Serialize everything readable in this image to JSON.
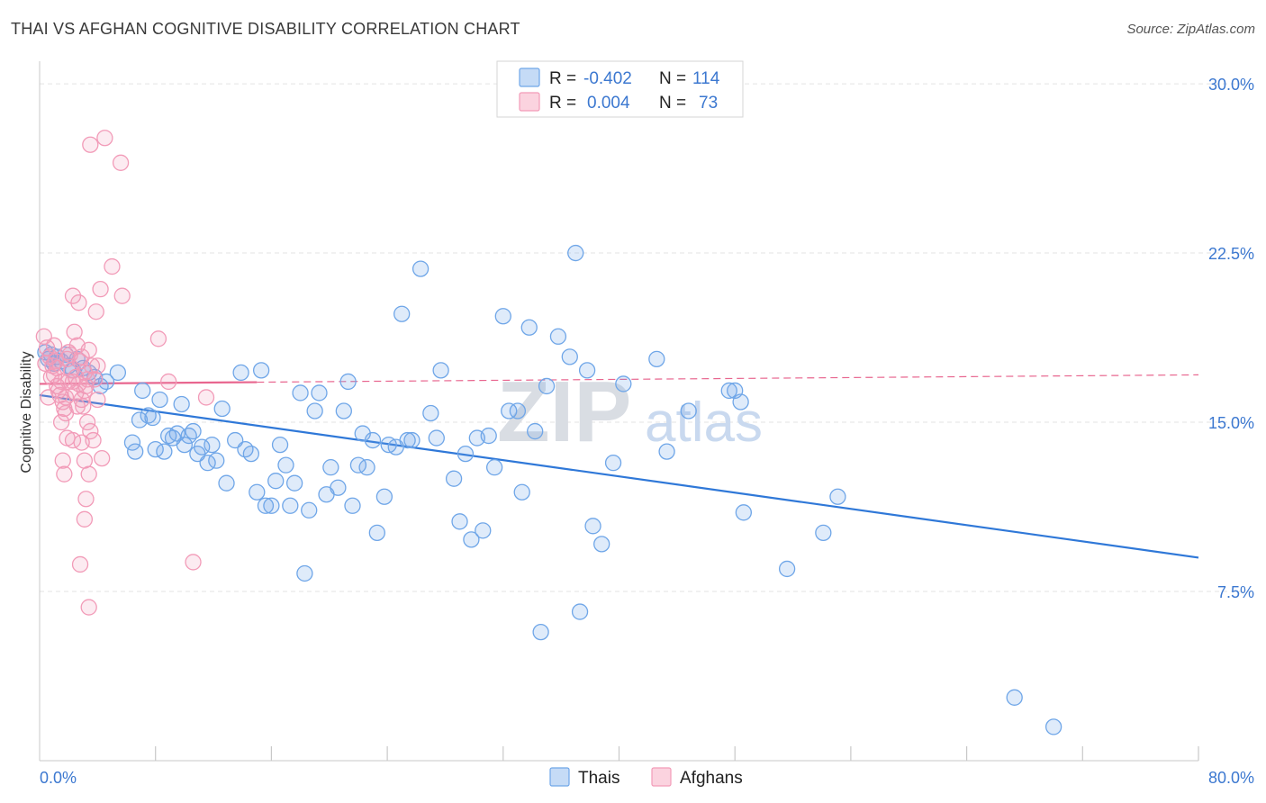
{
  "header": {
    "title": "THAI VS AFGHAN COGNITIVE DISABILITY CORRELATION CHART",
    "source": "Source: ZipAtlas.com"
  },
  "watermark": {
    "zip": "ZIP",
    "atlas": "atlas"
  },
  "colors": {
    "thais": "#6fa6e8",
    "thais_line": "#2f78d8",
    "afghans": "#f29bb8",
    "afghans_line": "#e8668f",
    "axis_text": "#3c78d0"
  },
  "chart_data": {
    "type": "scatter",
    "title": "THAI VS AFGHAN COGNITIVE DISABILITY CORRELATION CHART",
    "ylabel": "Cognitive Disability",
    "xlabel": "",
    "xlim": [
      0,
      80
    ],
    "ylim": [
      0,
      31
    ],
    "x_ticks": [
      "0.0%",
      "80.0%"
    ],
    "y_ticks": [
      {
        "value": 7.5,
        "label": "7.5%"
      },
      {
        "value": 15.0,
        "label": "15.0%"
      },
      {
        "value": 22.5,
        "label": "22.5%"
      },
      {
        "value": 30.0,
        "label": "30.0%"
      }
    ],
    "grid": true,
    "legend_position": "top-center",
    "legend": [
      {
        "r_label": "R =",
        "r_value": "-0.402",
        "n_label": "N =",
        "n_value": "114"
      },
      {
        "r_label": "R =",
        "r_value": "0.004",
        "n_label": "N =",
        "n_value": "73"
      }
    ],
    "series": [
      {
        "name": "Thais",
        "color": "#6fa6e8",
        "trend": {
          "x": [
            0,
            80
          ],
          "y": [
            16.2,
            9.0
          ],
          "style": "solid"
        },
        "points": [
          [
            0.4,
            18.1
          ],
          [
            0.6,
            17.8
          ],
          [
            0.8,
            18.0
          ],
          [
            1.0,
            17.6
          ],
          [
            1.2,
            17.9
          ],
          [
            1.5,
            17.7
          ],
          [
            1.8,
            18.0
          ],
          [
            2.0,
            17.5
          ],
          [
            2.3,
            17.3
          ],
          [
            2.6,
            17.8
          ],
          [
            3.0,
            17.4
          ],
          [
            3.4,
            17.2
          ],
          [
            3.8,
            17.0
          ],
          [
            4.2,
            16.6
          ],
          [
            4.6,
            16.8
          ],
          [
            5.4,
            17.2
          ],
          [
            6.4,
            14.1
          ],
          [
            6.6,
            13.7
          ],
          [
            6.9,
            15.1
          ],
          [
            7.1,
            16.4
          ],
          [
            7.5,
            15.3
          ],
          [
            7.8,
            15.2
          ],
          [
            8.0,
            13.8
          ],
          [
            8.3,
            16.0
          ],
          [
            8.6,
            13.7
          ],
          [
            8.9,
            14.4
          ],
          [
            9.2,
            14.3
          ],
          [
            9.5,
            14.5
          ],
          [
            9.8,
            15.8
          ],
          [
            10.0,
            14.0
          ],
          [
            10.3,
            14.4
          ],
          [
            10.6,
            14.6
          ],
          [
            10.9,
            13.6
          ],
          [
            11.2,
            13.9
          ],
          [
            11.6,
            13.2
          ],
          [
            11.9,
            14.0
          ],
          [
            12.2,
            13.3
          ],
          [
            12.6,
            15.6
          ],
          [
            12.9,
            12.3
          ],
          [
            13.5,
            14.2
          ],
          [
            13.9,
            17.2
          ],
          [
            14.2,
            13.8
          ],
          [
            14.6,
            13.6
          ],
          [
            15.0,
            11.9
          ],
          [
            15.3,
            17.3
          ],
          [
            15.6,
            11.3
          ],
          [
            16.0,
            11.3
          ],
          [
            16.3,
            12.4
          ],
          [
            16.6,
            14.0
          ],
          [
            17.0,
            13.1
          ],
          [
            17.3,
            11.3
          ],
          [
            17.6,
            12.3
          ],
          [
            18.0,
            16.3
          ],
          [
            18.3,
            8.3
          ],
          [
            18.6,
            11.1
          ],
          [
            19.0,
            15.5
          ],
          [
            19.3,
            16.3
          ],
          [
            19.8,
            11.8
          ],
          [
            20.1,
            13.0
          ],
          [
            20.6,
            12.1
          ],
          [
            21.0,
            15.5
          ],
          [
            21.3,
            16.8
          ],
          [
            21.6,
            11.3
          ],
          [
            22.0,
            13.1
          ],
          [
            22.3,
            14.5
          ],
          [
            22.6,
            13.0
          ],
          [
            23.0,
            14.2
          ],
          [
            23.3,
            10.1
          ],
          [
            23.8,
            11.7
          ],
          [
            24.1,
            14.0
          ],
          [
            24.6,
            13.9
          ],
          [
            25.0,
            19.8
          ],
          [
            25.4,
            14.2
          ],
          [
            25.7,
            14.2
          ],
          [
            26.3,
            21.8
          ],
          [
            27.0,
            15.4
          ],
          [
            27.4,
            14.3
          ],
          [
            27.7,
            17.3
          ],
          [
            28.6,
            12.5
          ],
          [
            29.0,
            10.6
          ],
          [
            29.4,
            13.6
          ],
          [
            29.8,
            9.8
          ],
          [
            30.2,
            14.3
          ],
          [
            30.6,
            10.2
          ],
          [
            31.0,
            14.4
          ],
          [
            31.4,
            13.0
          ],
          [
            32.0,
            19.7
          ],
          [
            32.4,
            15.5
          ],
          [
            33.0,
            15.5
          ],
          [
            33.3,
            11.9
          ],
          [
            33.8,
            19.2
          ],
          [
            34.2,
            14.6
          ],
          [
            34.6,
            5.7
          ],
          [
            35.0,
            16.6
          ],
          [
            35.8,
            18.8
          ],
          [
            36.6,
            17.9
          ],
          [
            37.0,
            22.5
          ],
          [
            37.3,
            6.6
          ],
          [
            37.8,
            17.3
          ],
          [
            38.2,
            10.4
          ],
          [
            38.8,
            9.6
          ],
          [
            39.6,
            13.2
          ],
          [
            40.3,
            16.7
          ],
          [
            42.6,
            17.8
          ],
          [
            43.3,
            13.7
          ],
          [
            44.8,
            15.5
          ],
          [
            47.6,
            16.4
          ],
          [
            48.0,
            16.4
          ],
          [
            48.4,
            15.9
          ],
          [
            48.6,
            11.0
          ],
          [
            51.6,
            8.5
          ],
          [
            54.1,
            10.1
          ],
          [
            55.1,
            11.7
          ],
          [
            67.3,
            2.8
          ],
          [
            70.0,
            1.5
          ]
        ]
      },
      {
        "name": "Afghans",
        "color": "#f29bb8",
        "trend": {
          "x": [
            0,
            80
          ],
          "y": [
            16.7,
            17.1
          ],
          "solid_until": 15.0,
          "style": "solid-then-dashed"
        },
        "points": [
          [
            0.3,
            18.8
          ],
          [
            0.5,
            18.3
          ],
          [
            0.7,
            17.9
          ],
          [
            0.9,
            17.5
          ],
          [
            1.0,
            17.1
          ],
          [
            1.2,
            16.6
          ],
          [
            1.4,
            16.2
          ],
          [
            1.6,
            15.9
          ],
          [
            1.7,
            15.6
          ],
          [
            1.8,
            15.4
          ],
          [
            1.9,
            17.8
          ],
          [
            2.0,
            18.1
          ],
          [
            2.2,
            17.3
          ],
          [
            2.3,
            16.8
          ],
          [
            2.5,
            16.3
          ],
          [
            2.6,
            18.4
          ],
          [
            2.8,
            17.7
          ],
          [
            2.9,
            16.0
          ],
          [
            3.0,
            15.7
          ],
          [
            3.1,
            17.2
          ],
          [
            3.2,
            16.6
          ],
          [
            3.4,
            18.2
          ],
          [
            3.6,
            17.5
          ],
          [
            3.8,
            16.9
          ],
          [
            4.0,
            16.0
          ],
          [
            0.6,
            16.1
          ],
          [
            0.8,
            17.0
          ],
          [
            1.1,
            17.7
          ],
          [
            1.3,
            16.4
          ],
          [
            1.5,
            15.0
          ],
          [
            1.9,
            14.3
          ],
          [
            2.1,
            18.0
          ],
          [
            2.4,
            19.0
          ],
          [
            2.7,
            16.7
          ],
          [
            2.9,
            17.9
          ],
          [
            3.1,
            16.4
          ],
          [
            3.3,
            15.0
          ],
          [
            3.5,
            14.6
          ],
          [
            1.6,
            13.3
          ],
          [
            1.7,
            12.7
          ],
          [
            2.3,
            14.2
          ],
          [
            2.6,
            15.7
          ],
          [
            2.9,
            14.1
          ],
          [
            3.1,
            13.3
          ],
          [
            3.4,
            12.7
          ],
          [
            3.7,
            14.2
          ],
          [
            3.2,
            11.6
          ],
          [
            3.1,
            10.7
          ],
          [
            2.8,
            8.7
          ],
          [
            3.4,
            6.8
          ],
          [
            4.3,
            13.4
          ],
          [
            4.0,
            17.5
          ],
          [
            2.3,
            20.6
          ],
          [
            2.7,
            20.3
          ],
          [
            3.9,
            19.9
          ],
          [
            4.2,
            20.9
          ],
          [
            5.0,
            21.9
          ],
          [
            5.7,
            20.6
          ],
          [
            3.5,
            27.3
          ],
          [
            4.5,
            27.6
          ],
          [
            5.6,
            26.5
          ],
          [
            8.2,
            18.7
          ],
          [
            8.9,
            16.8
          ],
          [
            11.5,
            16.1
          ],
          [
            10.6,
            8.8
          ],
          [
            1.0,
            18.4
          ],
          [
            1.2,
            17.4
          ],
          [
            1.5,
            16.8
          ],
          [
            1.8,
            16.1
          ],
          [
            2.0,
            16.8
          ],
          [
            0.4,
            17.6
          ],
          [
            2.5,
            17.0
          ],
          [
            3.3,
            16.9
          ]
        ]
      }
    ]
  },
  "legend_bottom": [
    {
      "label": "Thais",
      "color": "#6fa6e8"
    },
    {
      "label": "Afghans",
      "color": "#f29bb8"
    }
  ]
}
